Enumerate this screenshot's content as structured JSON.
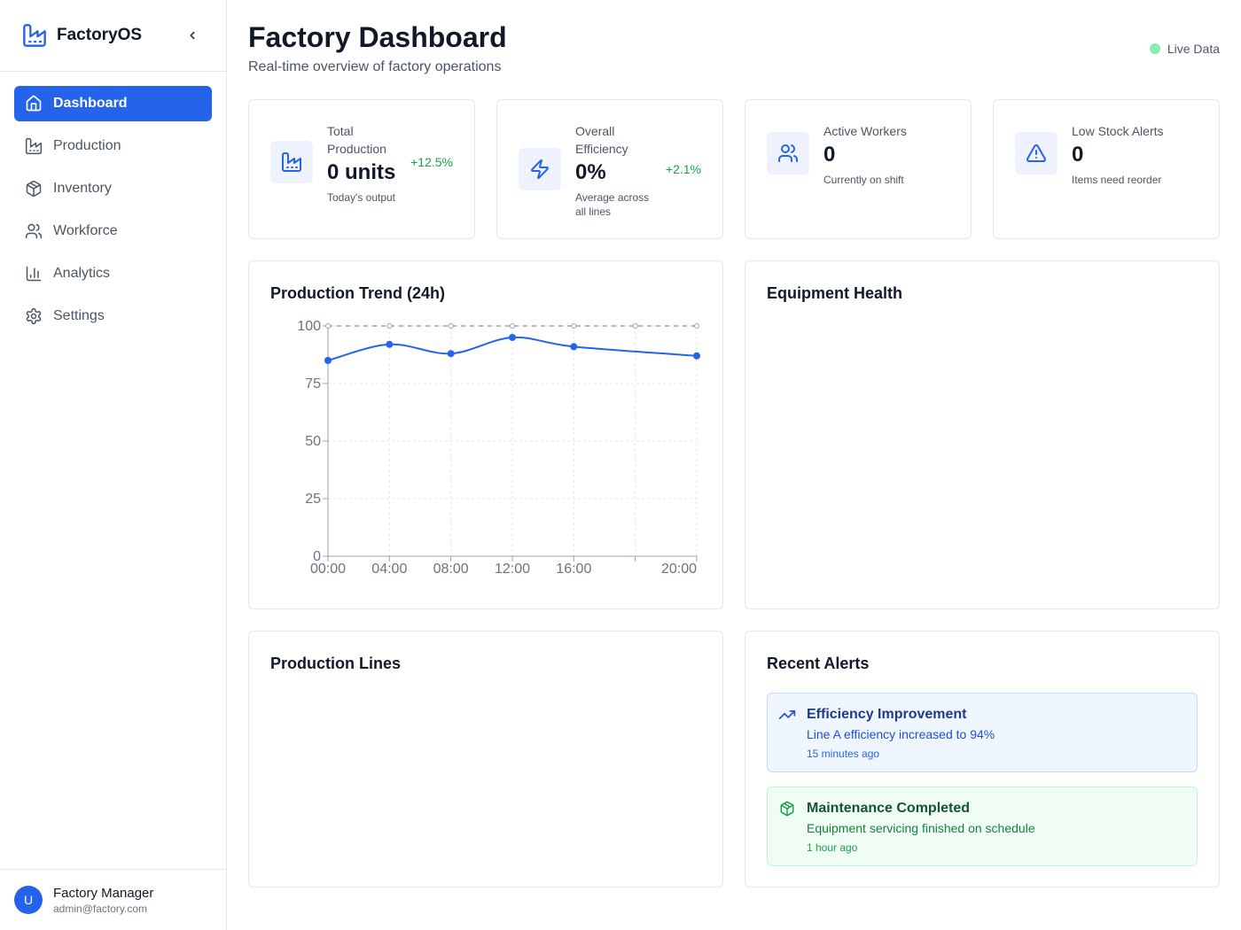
{
  "app": {
    "name": "FactoryOS"
  },
  "sidebar": {
    "items": [
      {
        "label": "Dashboard",
        "icon": "home-icon",
        "active": true
      },
      {
        "label": "Production",
        "icon": "factory-icon"
      },
      {
        "label": "Inventory",
        "icon": "package-icon"
      },
      {
        "label": "Workforce",
        "icon": "users-icon"
      },
      {
        "label": "Analytics",
        "icon": "bar-chart-icon"
      },
      {
        "label": "Settings",
        "icon": "gear-icon"
      }
    ],
    "user": {
      "initial": "U",
      "name": "Factory Manager",
      "email": "admin@factory.com"
    }
  },
  "header": {
    "title": "Factory Dashboard",
    "subtitle": "Real-time overview of factory operations",
    "live_label": "Live Data"
  },
  "stats": [
    {
      "label": "Total Production",
      "value": "0 units",
      "change": "+12.5%",
      "sub": "Today's output",
      "icon": "factory-icon"
    },
    {
      "label": "Overall Efficiency",
      "value": "0%",
      "change": "+2.1%",
      "sub": "Average across all lines",
      "icon": "lightning-icon"
    },
    {
      "label": "Active Workers",
      "value": "0",
      "change": "",
      "sub": "Currently on shift",
      "icon": "users-icon"
    },
    {
      "label": "Low Stock Alerts",
      "value": "0",
      "change": "",
      "sub": "Items need reorder",
      "icon": "warning-icon"
    }
  ],
  "panels": {
    "trend_title": "Production Trend (24h)",
    "equipment_title": "Equipment Health",
    "lines_title": "Production Lines",
    "alerts_title": "Recent Alerts"
  },
  "chart_data": {
    "type": "line",
    "title": "Production Trend (24h)",
    "x": [
      "00:00",
      "04:00",
      "08:00",
      "12:00",
      "16:00",
      "20:00"
    ],
    "x_ticks": [
      "00:00",
      "04:00",
      "08:00",
      "12:00",
      "16:00",
      "20:00"
    ],
    "series": [
      {
        "name": "",
        "values": [
          85,
          92,
          88,
          95,
          91,
          87
        ],
        "color": "#2563eb"
      }
    ],
    "reference_line": 100,
    "y_ticks": [
      0,
      25,
      50,
      75,
      100
    ],
    "ylim": [
      0,
      100
    ],
    "grid": true,
    "xlabel": "",
    "ylabel": ""
  },
  "alerts": [
    {
      "type": "info",
      "icon": "trending-up-icon",
      "title": "Efficiency Improvement",
      "message": "Line A efficiency increased to 94%",
      "time": "15 minutes ago"
    },
    {
      "type": "success",
      "icon": "package-icon",
      "title": "Maintenance Completed",
      "message": "Equipment servicing finished on schedule",
      "time": "1 hour ago"
    }
  ],
  "colors": {
    "accent": "#2563eb",
    "success": "#16a34a",
    "live": "#86efac"
  }
}
